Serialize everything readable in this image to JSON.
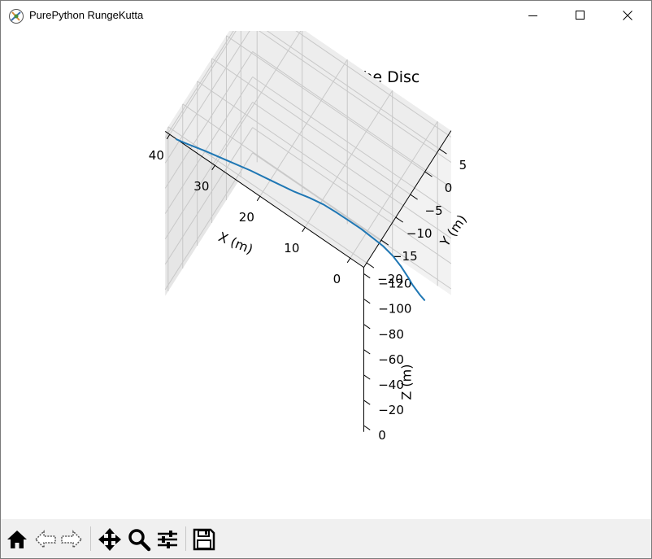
{
  "window": {
    "title": "PurePython RungeKutta"
  },
  "toolbar": {
    "coords": "",
    "buttons": [
      "home",
      "back",
      "forward",
      "pan",
      "zoom",
      "configure-subplots",
      "save"
    ]
  },
  "chart_data": {
    "type": "line3d",
    "title": "Flight Path of the Disc",
    "xlabel": "X (m)",
    "ylabel": "Y (m)",
    "zlabel": "Z (m)",
    "xlim": [
      -3,
      41
    ],
    "ylim": [
      -21,
      9
    ],
    "zlim": [
      -125,
      5
    ],
    "x_ticks": [
      "0",
      "10",
      "20",
      "30",
      "40"
    ],
    "y_ticks": [
      "−20",
      "−15",
      "−10",
      "−5",
      "0",
      "5"
    ],
    "z_ticks": [
      "−120",
      "−100",
      "−80",
      "−60",
      "−40",
      "−20",
      "0"
    ],
    "grid": true,
    "line_color": "#1f77b4",
    "series": [
      {
        "x": [
          0,
          1,
          2,
          3,
          4,
          6,
          8,
          10,
          12,
          14,
          16,
          18,
          20,
          22,
          24,
          27,
          30,
          33,
          36,
          38.5,
          39.5
        ],
        "y": [
          4.5,
          4.6,
          4.8,
          5.0,
          5.3,
          5.8,
          6.0,
          5.8,
          5.3,
          4.5,
          3.5,
          2.3,
          0.8,
          -1.0,
          -3.0,
          -5.8,
          -8.8,
          -12.0,
          -15.2,
          -18.0,
          -19.5
        ],
        "z": [
          0,
          -1,
          -2,
          -3,
          -4.5,
          -7,
          -10,
          -13.5,
          -17,
          -22,
          -27,
          -33,
          -40,
          -47,
          -54,
          -65,
          -77,
          -89,
          -101,
          -111,
          -117
        ]
      }
    ]
  }
}
